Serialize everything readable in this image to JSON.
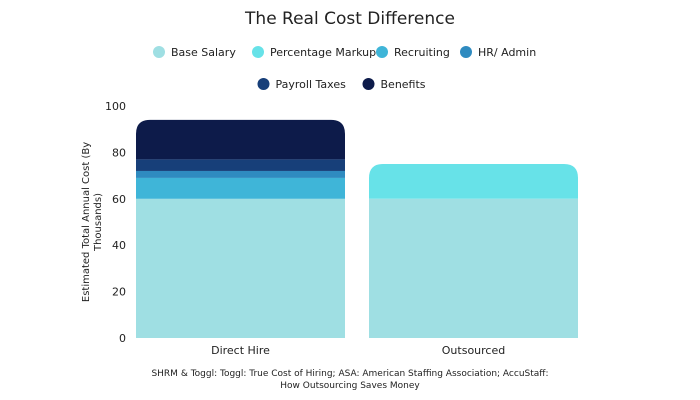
{
  "chart_data": {
    "type": "bar",
    "stacked": true,
    "title": "The Real Cost Difference",
    "ylabel": "Estimated Total Annual Cost (By Thousands)",
    "ylim": [
      0,
      100
    ],
    "yticks": [
      0,
      20,
      40,
      60,
      80,
      100
    ],
    "categories": [
      "Direct Hire",
      "Outsourced"
    ],
    "legend_position": "top",
    "grid": false,
    "series": [
      {
        "name": "Base Salary",
        "color": "#9fdfe3",
        "values": [
          60,
          60
        ]
      },
      {
        "name": "Percentage Markup",
        "color": "#67e2e8",
        "values": [
          0,
          15
        ]
      },
      {
        "name": "Recruiting",
        "color": "#3fb5d8",
        "values": [
          9,
          0
        ]
      },
      {
        "name": "HR/ Admin",
        "color": "#2f8bc0",
        "values": [
          3,
          0
        ]
      },
      {
        "name": "Payroll Taxes",
        "color": "#173f79",
        "values": [
          5,
          0
        ]
      },
      {
        "name": "Benefits",
        "color": "#0d1b4a",
        "values": [
          17,
          0
        ]
      }
    ],
    "source": [
      "SHRM & Toggl: Toggl: True Cost of Hiring; ASA: American Staffing Association; AccuStaff:",
      "How Outsourcing Saves Money"
    ]
  }
}
